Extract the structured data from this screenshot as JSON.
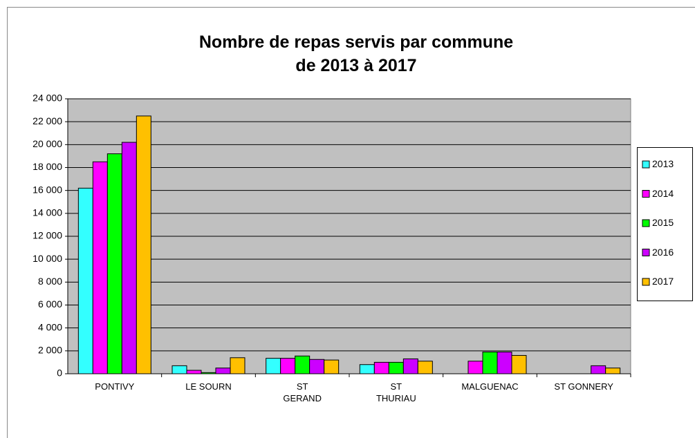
{
  "chart_data": {
    "type": "bar",
    "title": "Nombre de repas servis par commune\nde 2013 à 2017",
    "categories": [
      "PONTIVY",
      "LE SOURN",
      "ST\nGERAND",
      "ST\nTHURIAU",
      "MALGUENAC",
      "ST GONNERY"
    ],
    "series": [
      {
        "name": "2013",
        "color": "#33ffff",
        "values": [
          16200,
          700,
          1350,
          800,
          null,
          null
        ]
      },
      {
        "name": "2014",
        "color": "#ff00ff",
        "values": [
          18500,
          300,
          1350,
          1000,
          1100,
          null
        ]
      },
      {
        "name": "2015",
        "color": "#00ff00",
        "values": [
          19200,
          100,
          1550,
          1000,
          1900,
          null
        ]
      },
      {
        "name": "2016",
        "color": "#cc00ff",
        "values": [
          20200,
          500,
          1250,
          1300,
          1900,
          700
        ]
      },
      {
        "name": "2017",
        "color": "#ffc000",
        "values": [
          22500,
          1400,
          1200,
          1100,
          1600,
          500
        ]
      }
    ],
    "ylim": [
      0,
      24000
    ],
    "yticks": [
      0,
      {
        "value": 2000,
        "label": "2 000"
      },
      {
        "value": 4000,
        "label": "4 000"
      },
      {
        "value": 6000,
        "label": "6 000"
      },
      {
        "value": 8000,
        "label": "8 000"
      },
      {
        "value": 10000,
        "label": "10 000"
      },
      {
        "value": 12000,
        "label": "12 000"
      },
      {
        "value": 14000,
        "label": "14 000"
      },
      {
        "value": 16000,
        "label": "16 000"
      },
      {
        "value": 18000,
        "label": "18 000"
      },
      {
        "value": 20000,
        "label": "20 000"
      },
      {
        "value": 22000,
        "label": "22 000"
      },
      {
        "value": 24000,
        "label": "24 000"
      }
    ],
    "grid": true,
    "legend": "right",
    "plot_background": "#c0c0c0"
  }
}
